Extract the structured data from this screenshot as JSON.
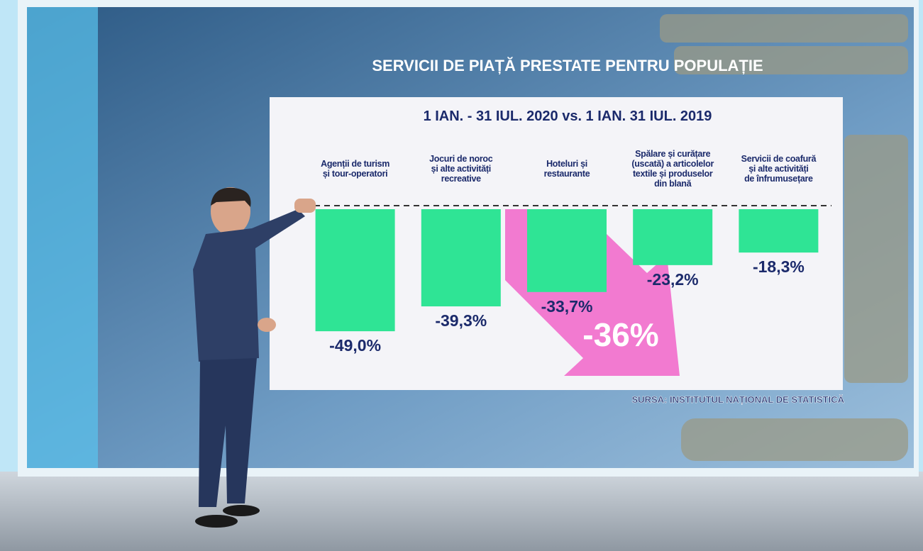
{
  "chart_data": {
    "type": "bar",
    "title": "SERVICII DE PIAȚĂ PRESTATE PENTRU POPULAȚIE",
    "subtitle": "1 IAN. - 31 IUL. 2020 vs. 1 IAN. 31 IUL. 2019",
    "categories": [
      "Agenții de turism\nși tour-operatori",
      "Jocuri de noroc\nși alte activități\nrecreative",
      "Hoteluri și\nrestaurante",
      "Spălare și curățare\n(uscată) a articolelor\ntextile și produselor\ndin blană",
      "Servicii de coafură\nși alte activități\nde înfrumusețare"
    ],
    "values": [
      -49.0,
      -39.3,
      -33.7,
      -23.2,
      -18.3
    ],
    "value_labels": [
      "-49,0%",
      "-39,3%",
      "-33,7%",
      "-23,2%",
      "-18,3%"
    ],
    "color": "#2fe495",
    "ylim": [
      -70,
      0
    ],
    "annotation": "-36%",
    "source": "SURSA: INSTITUTUL NAȚIONAL DE STATISTICĂ"
  }
}
